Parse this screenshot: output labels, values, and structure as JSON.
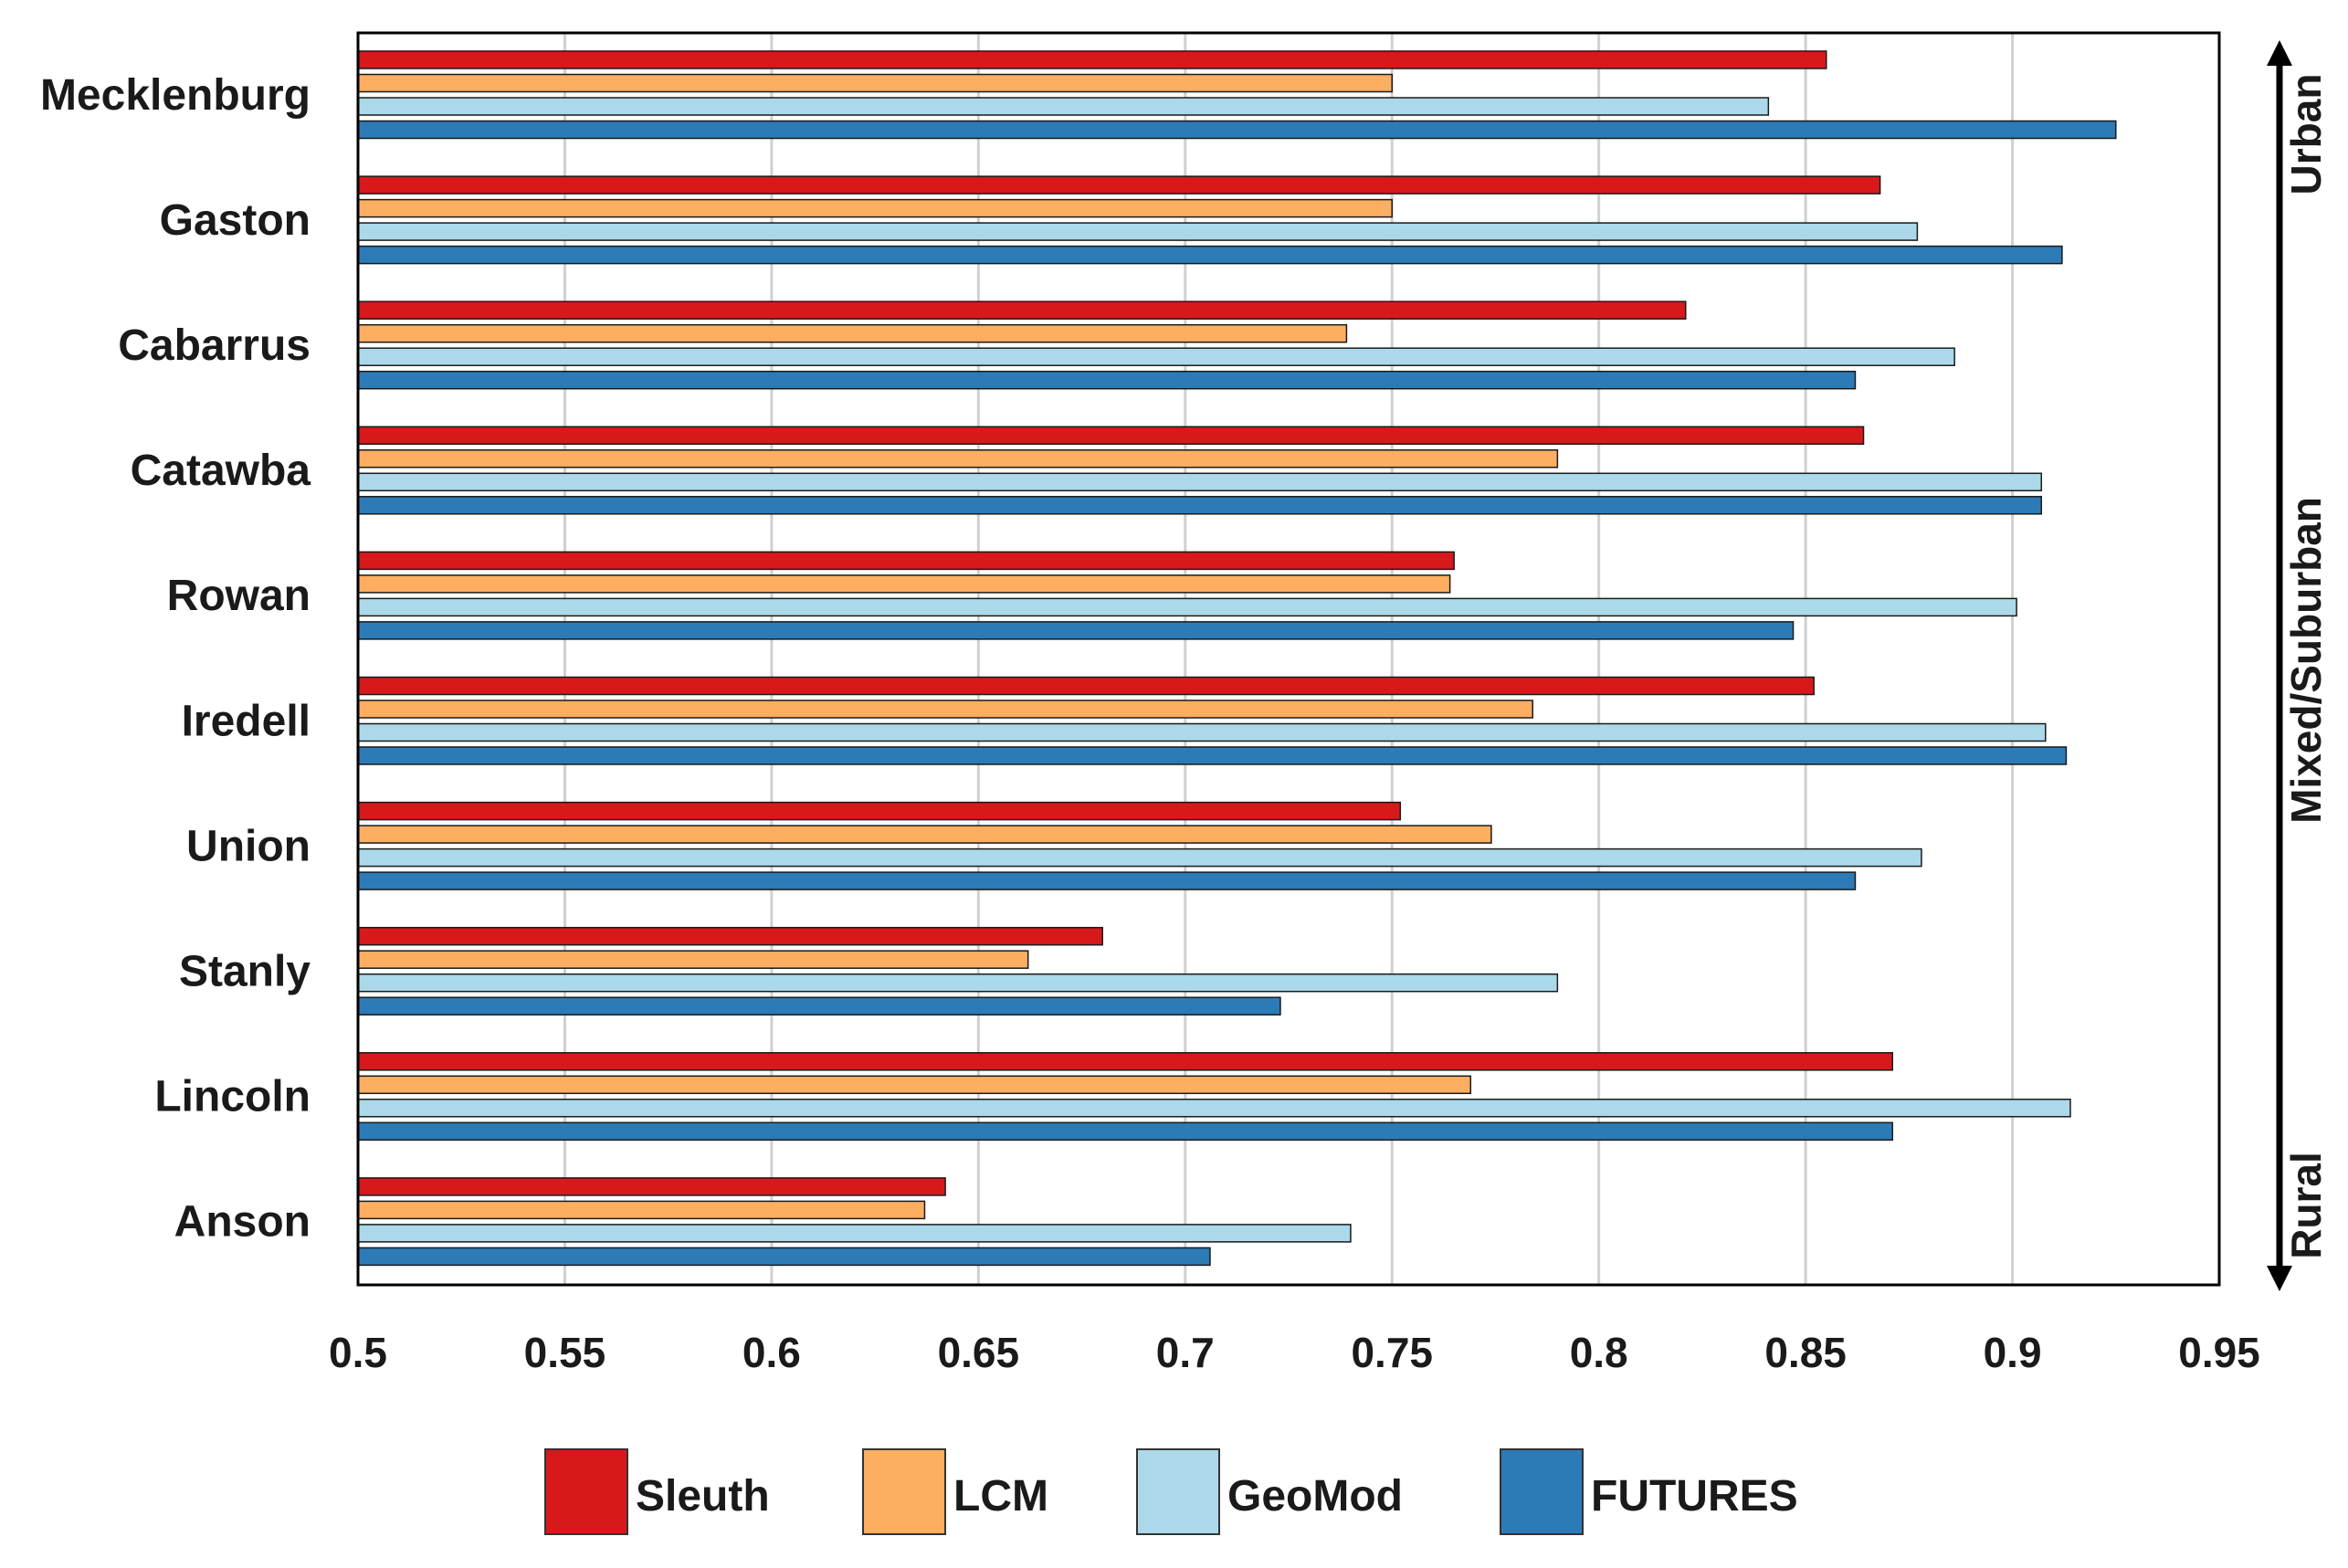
{
  "chart_data": {
    "type": "bar",
    "orientation": "horizontal",
    "title": "",
    "xlabel": "",
    "ylabel": "",
    "xlim": [
      0.5,
      0.95
    ],
    "x_ticks": [
      "0.5",
      "0.55",
      "0.6",
      "0.65",
      "0.7",
      "0.75",
      "0.8",
      "0.85",
      "0.9",
      "0.95"
    ],
    "x_tick_values": [
      0.5,
      0.55,
      0.6,
      0.65,
      0.7,
      0.75,
      0.8,
      0.85,
      0.9,
      0.95
    ],
    "grid": "vertical",
    "categories": [
      "Mecklenburg",
      "Gaston",
      "Cabarrus",
      "Catawba",
      "Rowan",
      "Iredell",
      "Union",
      "Stanly",
      "Lincoln",
      "Anson"
    ],
    "series": [
      {
        "name": "Sleuth",
        "color": "#d7191c",
        "values": [
          0.855,
          0.868,
          0.821,
          0.864,
          0.765,
          0.852,
          0.752,
          0.68,
          0.871,
          0.642
        ]
      },
      {
        "name": "LCM",
        "color": "#fdae61",
        "values": [
          0.75,
          0.75,
          0.739,
          0.79,
          0.764,
          0.784,
          0.774,
          0.662,
          0.769,
          0.637
        ]
      },
      {
        "name": "GeoMod",
        "color": "#abd9e9",
        "values": [
          0.841,
          0.877,
          0.886,
          0.907,
          0.901,
          0.908,
          0.878,
          0.79,
          0.914,
          0.74
        ]
      },
      {
        "name": "FUTURES",
        "color": "#2c7bb6",
        "values": [
          0.925,
          0.912,
          0.862,
          0.907,
          0.847,
          0.913,
          0.862,
          0.723,
          0.871,
          0.706
        ]
      }
    ],
    "legend_position": "bottom",
    "side_annotation": {
      "arrow": "double-headed vertical",
      "labels": [
        "Urban",
        "Mixed/Suburban",
        "Rural"
      ]
    }
  }
}
